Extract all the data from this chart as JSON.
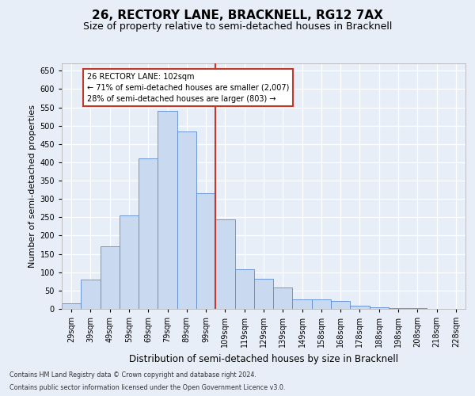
{
  "title": "26, RECTORY LANE, BRACKNELL, RG12 7AX",
  "subtitle": "Size of property relative to semi-detached houses in Bracknell",
  "xlabel": "Distribution of semi-detached houses by size in Bracknell",
  "ylabel": "Number of semi-detached properties",
  "categories": [
    "29sqm",
    "39sqm",
    "49sqm",
    "59sqm",
    "69sqm",
    "79sqm",
    "89sqm",
    "99sqm",
    "109sqm",
    "119sqm",
    "129sqm",
    "139sqm",
    "149sqm",
    "158sqm",
    "168sqm",
    "178sqm",
    "188sqm",
    "198sqm",
    "208sqm",
    "218sqm",
    "228sqm"
  ],
  "values": [
    15,
    80,
    170,
    255,
    410,
    540,
    485,
    315,
    245,
    107,
    83,
    58,
    26,
    26,
    22,
    8,
    5,
    3,
    2,
    1,
    1
  ],
  "bar_color": "#c8d9f0",
  "bar_edge_color": "#5b8bd0",
  "vline_index": 7.5,
  "vline_color": "#c0392b",
  "annotation_line1": "26 RECTORY LANE: 102sqm",
  "annotation_line2": "← 71% of semi-detached houses are smaller (2,007)",
  "annotation_line3": "28% of semi-detached houses are larger (803) →",
  "annotation_box_color": "#ffffff",
  "annotation_box_edge": "#c0392b",
  "footer_line1": "Contains HM Land Registry data © Crown copyright and database right 2024.",
  "footer_line2": "Contains public sector information licensed under the Open Government Licence v3.0.",
  "ylim": [
    0,
    670
  ],
  "yticks": [
    0,
    50,
    100,
    150,
    200,
    250,
    300,
    350,
    400,
    450,
    500,
    550,
    600,
    650
  ],
  "background_color": "#e8eef8",
  "grid_color": "#ffffff",
  "title_fontsize": 11,
  "subtitle_fontsize": 9,
  "tick_fontsize": 7,
  "ylabel_fontsize": 8,
  "xlabel_fontsize": 8.5,
  "footer_fontsize": 5.8
}
